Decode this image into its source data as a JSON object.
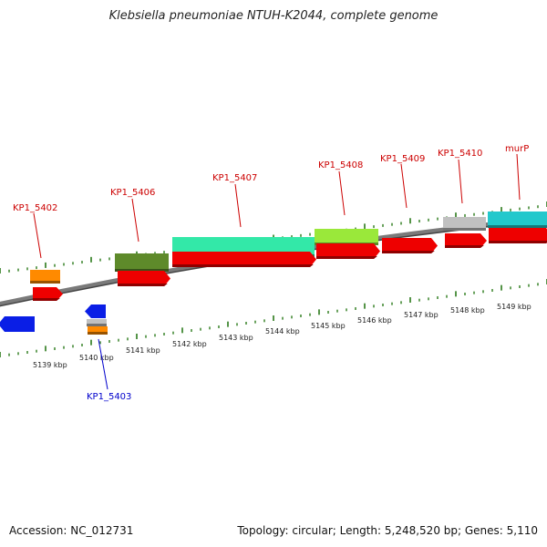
{
  "title": "Klebsiella pneumoniae NTUH-K2044, complete genome",
  "footer": {
    "accession": "Accession: NC_012731",
    "summary": "Topology: circular; Length: 5,248,520 bp; Genes: 5,110"
  },
  "colors": {
    "backbone": "#7a7a7a",
    "tick": "#2a7a1a",
    "label_plus": "#cc0000",
    "label_minus": "#0000cc",
    "cds": "#ee0000",
    "orange": "#ff8a00",
    "darkgreen": "#5e8a2a",
    "aquagreen": "#33e8a8",
    "lightgreen": "#9ae83a",
    "gray": "#c0c0c0",
    "cyan": "#22c8cc",
    "blue": "#0a1ee6"
  },
  "scale_labels": [
    "5139 kbp",
    "5140 kbp",
    "5141 kbp",
    "5142 kbp",
    "5143 kbp",
    "5144 kbp",
    "5145 kbp",
    "5146 kbp",
    "5147 kbp",
    "5148 kbp",
    "5149 kbp"
  ],
  "gene_labels": [
    {
      "text": "KP1_5402",
      "strand": "plus"
    },
    {
      "text": "KP1_5406",
      "strand": "plus"
    },
    {
      "text": "KP1_5407",
      "strand": "plus"
    },
    {
      "text": "KP1_5408",
      "strand": "plus"
    },
    {
      "text": "KP1_5409",
      "strand": "plus"
    },
    {
      "text": "KP1_5410",
      "strand": "plus"
    },
    {
      "text": "murP",
      "strand": "plus"
    },
    {
      "text": "KP1_5403",
      "strand": "minus"
    }
  ]
}
